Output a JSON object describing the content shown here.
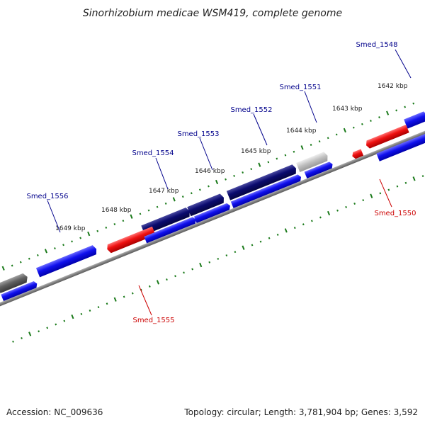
{
  "title": "Sinorhizobium medicae WSM419, complete genome",
  "footer": {
    "accession": "Accession: NC_009636",
    "stats": "Topology: circular; Length: 3,781,904 bp; Genes: 3,592"
  },
  "colors": {
    "plus_strand_label": "#00008b",
    "minus_strand_label": "#cc0000",
    "plus_cds": "#1010ee",
    "minus_cds": "#ee1010",
    "dark_cds": "#0a0a6e",
    "backbone": "#777777",
    "ticks": "#1a7a1a"
  },
  "scale_ticks": [
    {
      "label": "1649 kbp"
    },
    {
      "label": "1648 kbp"
    },
    {
      "label": "1647 kbp"
    },
    {
      "label": "1646 kbp"
    },
    {
      "label": "1645 kbp"
    },
    {
      "label": "1644 kbp"
    },
    {
      "label": "1643 kbp"
    },
    {
      "label": "1642 kbp"
    }
  ],
  "gene_labels": [
    {
      "label": "Smed_1548",
      "strand": "plus"
    },
    {
      "label": "Smed_1551",
      "strand": "plus"
    },
    {
      "label": "Smed_1552",
      "strand": "plus"
    },
    {
      "label": "Smed_1553",
      "strand": "plus"
    },
    {
      "label": "Smed_1554",
      "strand": "plus"
    },
    {
      "label": "Smed_1556",
      "strand": "plus"
    },
    {
      "label": "Smed_1550",
      "strand": "minus"
    },
    {
      "label": "Smed_1555",
      "strand": "minus"
    }
  ]
}
